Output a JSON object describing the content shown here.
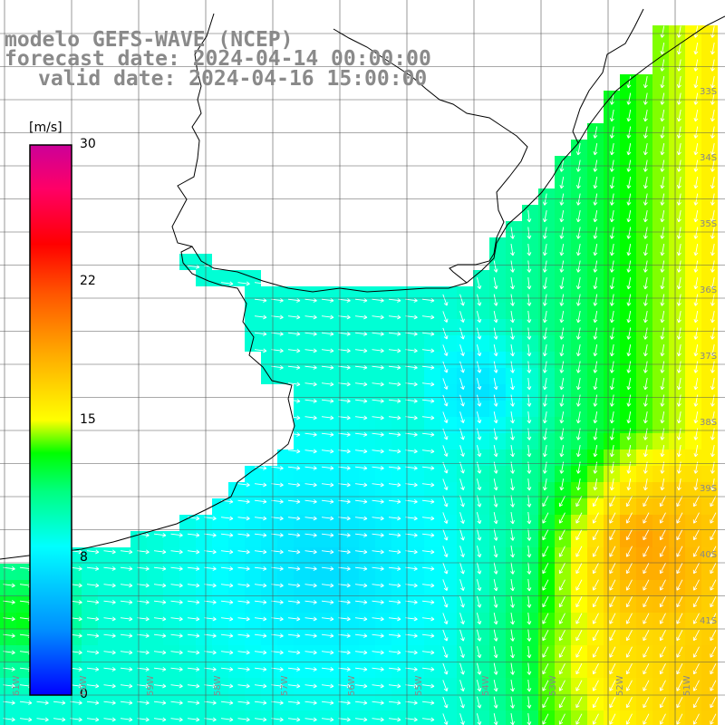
{
  "title": {
    "line1": "modelo GEFS-WAVE (NCEP)",
    "line2": "forecast date: 2024-04-14 00:00:00",
    "line3": "valid date: 2024-04-16 15:00:00"
  },
  "colorbar": {
    "unit": "[m/s]",
    "ticks": [
      "30",
      "22",
      "15",
      "8",
      "0"
    ],
    "tick_values": [
      30,
      22,
      15,
      8,
      0
    ],
    "range": [
      0,
      30
    ],
    "colors": [
      "#0000ff",
      "#0090ff",
      "#00ffff",
      "#00ff80",
      "#00ff00",
      "#aaff00",
      "#ffff00",
      "#ffaa00",
      "#ff5500",
      "#ff0000",
      "#ff0066",
      "#cc0099"
    ]
  },
  "axes": {
    "lat_labels": [
      "33S",
      "34S",
      "35S",
      "36S",
      "37S",
      "38S",
      "39S",
      "40S",
      "41S"
    ],
    "lon_labels": [
      "61W",
      "60W",
      "59W",
      "58W",
      "57W",
      "56W",
      "55W",
      "54W",
      "53W",
      "52W",
      "51W"
    ]
  },
  "map_colors": {
    "land": "#ffffff",
    "coastline": "#000000",
    "grid": "#555555",
    "arrow": "#ffffff"
  }
}
